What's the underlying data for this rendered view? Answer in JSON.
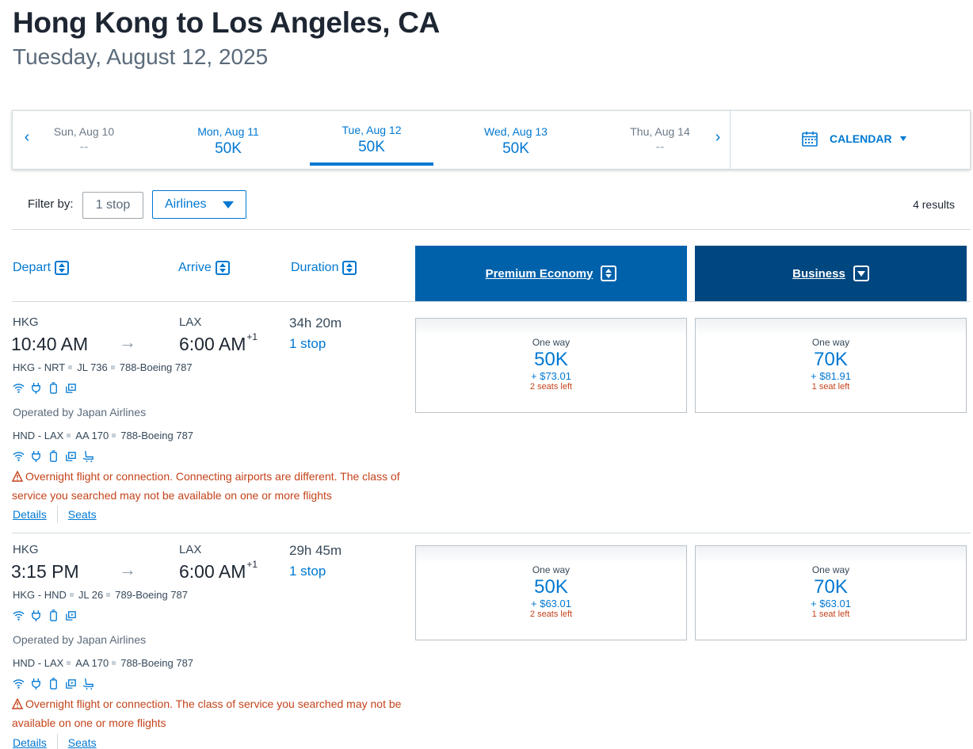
{
  "header": {
    "title": "Hong Kong to Los Angeles, CA",
    "subtitle": "Tuesday, August 12, 2025"
  },
  "date_bar": {
    "prev": "‹",
    "next": "›",
    "days": [
      {
        "label": "Sun, Aug 10",
        "price": "--"
      },
      {
        "label": "Mon, Aug 11",
        "price": "50K"
      },
      {
        "label": "Tue, Aug 12",
        "price": "50K"
      },
      {
        "label": "Wed, Aug 13",
        "price": "50K"
      },
      {
        "label": "Thu, Aug 14",
        "price": "--"
      }
    ],
    "selected_day": "Tue, Aug 12",
    "calendar_label": "CALENDAR"
  },
  "filters": {
    "label": "Filter by:",
    "stops": "1 stop",
    "airlines": "Airlines",
    "results": "4 results"
  },
  "columns": {
    "depart": "Depart",
    "arrive": "Arrive",
    "duration": "Duration",
    "cabins": [
      "Premium Economy",
      "Business"
    ]
  },
  "flights": [
    {
      "from": "HKG",
      "depart_time": "10:40 AM",
      "to": "LAX",
      "arrive_time": "6:00 AM",
      "day_offset": "+1",
      "duration": "34h 20m",
      "stops": "1 stop",
      "segments": [
        {
          "route": "HKG - NRT",
          "flight": "JL 736",
          "aircraft": "788-Boeing 787"
        },
        {
          "route": "HND - LAX",
          "flight": "AA 170",
          "aircraft": "788-Boeing 787"
        }
      ],
      "operated_by": "Operated by Japan Airlines",
      "warning": "Overnight flight or connection. Connecting airports are different. The class of service you searched may not be available on one or more flights",
      "details": "Details",
      "seats": "Seats",
      "fares": [
        {
          "label": "One way",
          "points": "50K",
          "tax": "+ $73.01",
          "seats": "2 seats left"
        },
        {
          "label": "One way",
          "points": "70K",
          "tax": "+ $81.91",
          "seats": "1 seat left"
        }
      ]
    },
    {
      "from": "HKG",
      "depart_time": "3:15 PM",
      "to": "LAX",
      "arrive_time": "6:00 AM",
      "day_offset": "+1",
      "duration": "29h 45m",
      "stops": "1 stop",
      "segments": [
        {
          "route": "HKG - HND",
          "flight": "JL 26",
          "aircraft": "789-Boeing 787"
        },
        {
          "route": "HND - LAX",
          "flight": "AA 170",
          "aircraft": "788-Boeing 787"
        }
      ],
      "operated_by": "Operated by Japan Airlines",
      "warning": "Overnight flight or connection. The class of service you searched may not be available on one or more flights",
      "details": "Details",
      "seats": "Seats",
      "fares": [
        {
          "label": "One way",
          "points": "50K",
          "tax": "+ $63.01",
          "seats": "2 seats left"
        },
        {
          "label": "One way",
          "points": "70K",
          "tax": "+ $63.01",
          "seats": "1 seat left"
        }
      ]
    }
  ],
  "colors": {
    "accent": "#0078d2",
    "premium_economy_header": "#0061ab",
    "business_header": "#00467f",
    "warning": "#c4431b"
  }
}
